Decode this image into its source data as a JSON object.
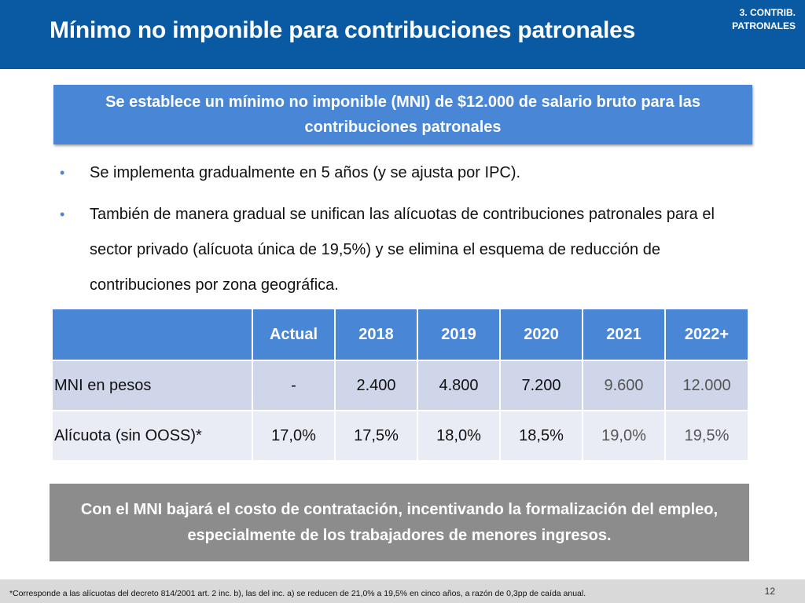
{
  "header": {
    "title": "Mínimo no imponible para contribuciones patronales",
    "section_tag_line1": "3. CONTRIB.",
    "section_tag_line2": "PATRONALES",
    "color": "#0a5aa3"
  },
  "highlight": {
    "text": "Se establece un mínimo no imponible (MNI) de $12.000 de salario bruto para las contribuciones patronales",
    "color": "#4a86d6"
  },
  "bullets": [
    {
      "text": "Se implementa gradualmente en 5 años (y se ajusta por IPC)."
    },
    {
      "text": "También de manera gradual se unifican las alícuotas de contribuciones patronales para el sector privado (alícuota única de 19,5%) y se elimina el esquema de reducción de contribuciones por zona geográfica."
    }
  ],
  "table": {
    "headers": [
      "",
      "Actual",
      "2018",
      "2019",
      "2020",
      "2021",
      "2022+"
    ],
    "rows": [
      {
        "label": "MNI en pesos",
        "cells": [
          "-",
          "2.400",
          "4.800",
          "7.200",
          "9.600",
          "12.000"
        ]
      },
      {
        "label": "Alícuota (sin OOSS)*",
        "cells": [
          "17,0%",
          "17,5%",
          "18,0%",
          "18,5%",
          "19,0%",
          "19,5%"
        ]
      }
    ]
  },
  "conclusion": {
    "text": "Con el MNI bajará el costo de contratación, incentivando la formalización del empleo, especialmente de los trabajadores de menores ingresos.",
    "color": "#8c8c8c"
  },
  "footer": {
    "footnote": "*Corresponde a las alícuotas del decreto 814/2001 art. 2 inc. b), las del inc. a) se reducen de 21,0% a 19,5% en cinco años, a razón de 0,3pp de caída anual.",
    "page_number": "12"
  }
}
